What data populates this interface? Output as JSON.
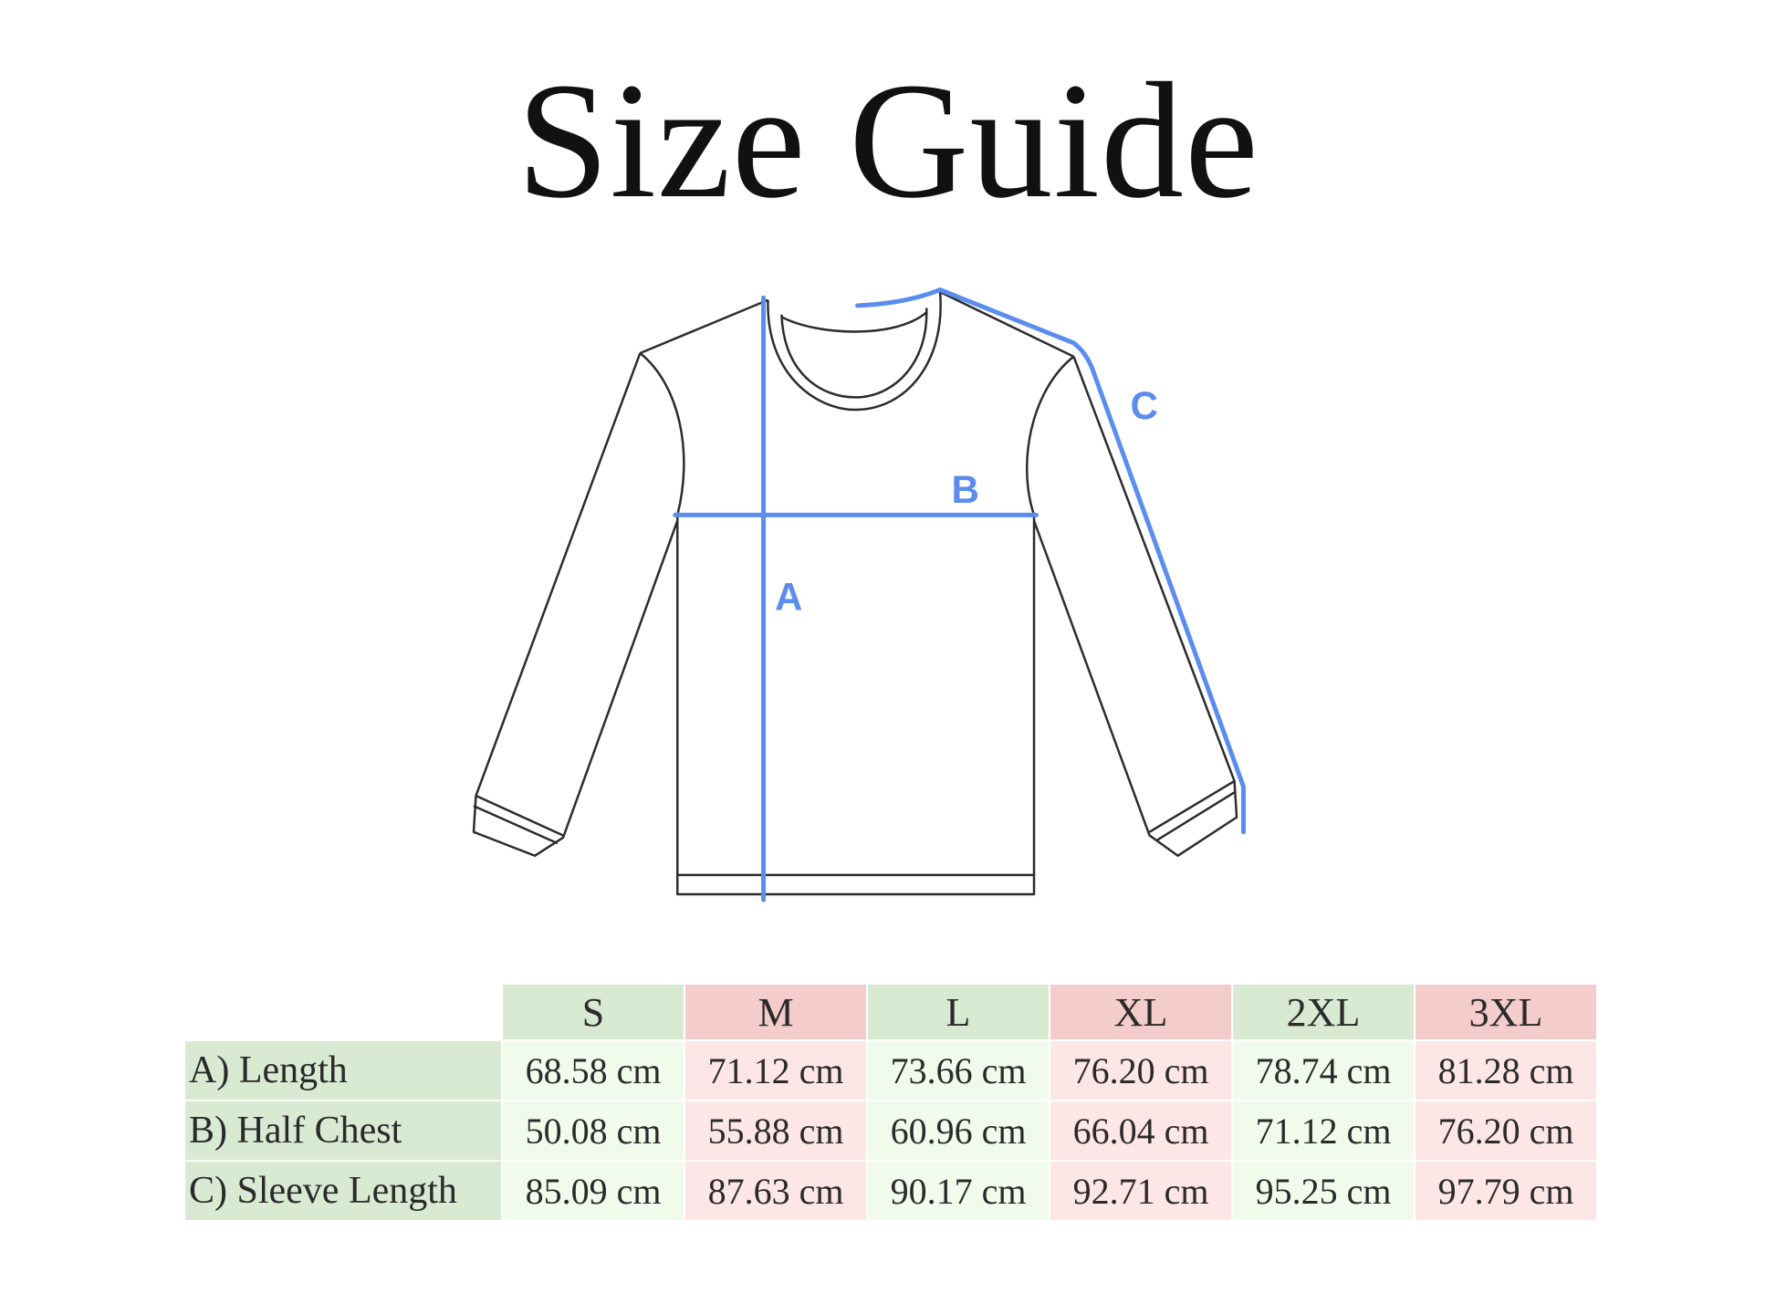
{
  "title": "Size Guide",
  "diagram": {
    "labels": {
      "a": "A",
      "b": "B",
      "c": "C"
    },
    "accent_color": "#5b8def"
  },
  "table": {
    "sizes": [
      "S",
      "M",
      "L",
      "XL",
      "2XL",
      "3XL"
    ],
    "rows": [
      {
        "label": "A) Length",
        "values": [
          "68.58 cm",
          "71.12 cm",
          "73.66 cm",
          "76.20 cm",
          "78.74 cm",
          "81.28 cm"
        ]
      },
      {
        "label": "B) Half Chest",
        "values": [
          "50.08 cm",
          "55.88 cm",
          "60.96 cm",
          "66.04 cm",
          "71.12 cm",
          "76.20 cm"
        ]
      },
      {
        "label": "C) Sleeve Length",
        "values": [
          "85.09 cm",
          "87.63 cm",
          "90.17 cm",
          "92.71 cm",
          "95.25 cm",
          "97.79 cm"
        ]
      }
    ],
    "colors": {
      "green_header": "#d9ead3",
      "pink_header": "#f4cccc",
      "green_cell": "#f1fbec",
      "pink_cell": "#fde6e6"
    }
  }
}
